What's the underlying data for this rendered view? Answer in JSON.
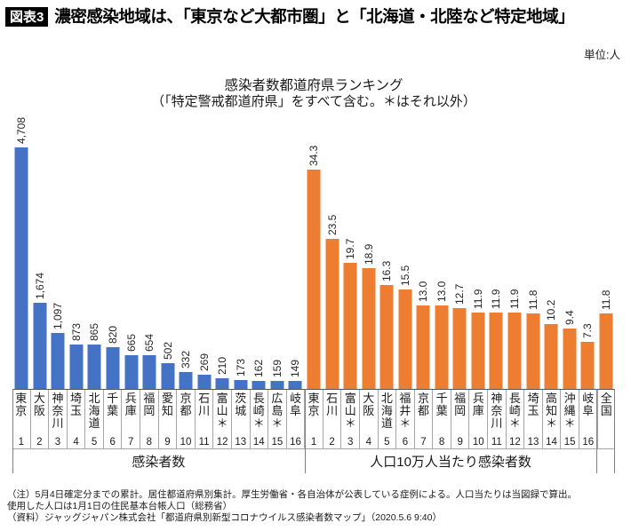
{
  "header": {
    "tag": "図表3",
    "title": "濃密感染地域は、「東京など大都市圏」と「北海道・北陸など特定地域」"
  },
  "unit_label": "単位:人",
  "chart_data": {
    "type": "bar",
    "title": "感染者数都道府県ランキング",
    "subtitle": "（「特定警戒都道府県」をすべて含む。＊はそれ以外）",
    "legend_position": "none",
    "grid": false,
    "groups": [
      {
        "name": "感染者数",
        "color": "#4472C4",
        "ylim": [
          0,
          4708
        ],
        "categories": [
          "東京",
          "大阪",
          "神奈川",
          "埼玉",
          "北海道",
          "千葉",
          "兵庫",
          "福岡",
          "愛知",
          "京都",
          "石川",
          "富山＊",
          "茨城",
          "長崎＊",
          "広島＊",
          "岐阜"
        ],
        "ranks": [
          "1",
          "2",
          "3",
          "4",
          "5",
          "6",
          "7",
          "8",
          "9",
          "10",
          "11",
          "12",
          "13",
          "14",
          "15",
          "16"
        ],
        "values": [
          4708,
          1674,
          1097,
          873,
          865,
          820,
          665,
          654,
          502,
          332,
          269,
          210,
          173,
          162,
          159,
          149
        ],
        "value_labels": [
          "4,708",
          "1,674",
          "1,097",
          "873",
          "865",
          "820",
          "665",
          "654",
          "502",
          "332",
          "269",
          "210",
          "173",
          "162",
          "159",
          "149"
        ]
      },
      {
        "name": "人口10万人当たり感染者数",
        "color": "#ED7D31",
        "ylim": [
          0,
          34.3
        ],
        "categories": [
          "東京",
          "石川",
          "富山＊",
          "大阪",
          "北海道",
          "福井＊",
          "京都",
          "千葉",
          "福岡",
          "兵庫",
          "神奈川",
          "長崎＊",
          "埼玉",
          "高知＊",
          "沖縄＊",
          "岐阜",
          "全国"
        ],
        "ranks": [
          "1",
          "2",
          "3",
          "4",
          "5",
          "6",
          "7",
          "8",
          "9",
          "10",
          "11",
          "12",
          "13",
          "14",
          "15",
          "16",
          ""
        ],
        "values": [
          34.3,
          23.5,
          19.7,
          18.9,
          16.3,
          15.5,
          13.0,
          13.0,
          12.7,
          11.9,
          11.9,
          11.9,
          11.8,
          10.2,
          9.4,
          7.3,
          11.8
        ],
        "value_labels": [
          "34.3",
          "23.5",
          "19.7",
          "18.9",
          "16.3",
          "15.5",
          "13.0",
          "13.0",
          "12.7",
          "11.9",
          "11.9",
          "11.9",
          "11.8",
          "10.2",
          "9.4",
          "7.3",
          "11.8"
        ]
      }
    ]
  },
  "footnotes": [
    "（注）5月4日確定分までの累計。居住都道府県別集計。厚生労働省・各自治体が公表している症例による。人口当たりは当図録で算出。",
    "使用した人口は1月1日の住民基本台帳人口（総務省）",
    "（資料）ジャッグジャパン株式会社「都道府県別新型コロナウイルス感染者数マップ」（2020.5.6 9:40）"
  ]
}
